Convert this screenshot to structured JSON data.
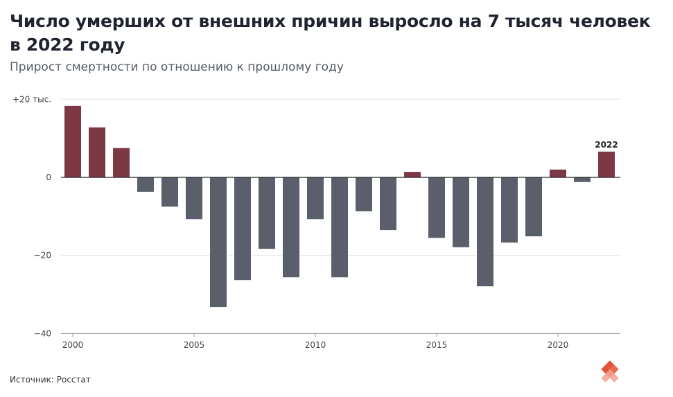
{
  "chart_data": {
    "type": "bar",
    "title": "Число умерших от внешних причин выросло на 7 тысяч человек в 2022 году",
    "subtitle": "Прирост смертности по отношению к прошлому году",
    "source": "Источник: Росстат",
    "xlabel": "",
    "ylabel": "",
    "ylim": [
      -40,
      22
    ],
    "yticks": [
      {
        "v": 20,
        "label": "+20 тыс."
      },
      {
        "v": 0,
        "label": "0"
      },
      {
        "v": -20,
        "label": "−20"
      },
      {
        "v": -40,
        "label": "−40"
      }
    ],
    "xticks": [
      2000,
      2005,
      2010,
      2015,
      2020
    ],
    "annotation": {
      "year": 2022,
      "label": "2022"
    },
    "categories": [
      2000,
      2001,
      2002,
      2003,
      2004,
      2005,
      2006,
      2007,
      2008,
      2009,
      2010,
      2011,
      2012,
      2013,
      2014,
      2015,
      2016,
      2017,
      2018,
      2019,
      2020,
      2021,
      2022
    ],
    "values": [
      18.3,
      12.8,
      7.5,
      -3.7,
      -7.5,
      -10.7,
      -33.2,
      -26.3,
      -18.3,
      -25.6,
      -10.7,
      -25.6,
      -8.7,
      -13.5,
      1.4,
      -15.5,
      -17.9,
      -27.9,
      -16.7,
      -15.1,
      2.0,
      -1.2,
      6.6
    ],
    "colors": {
      "positive": "#7d3846",
      "negative": "#5a5f6b",
      "grid": "#e3e3e3",
      "axis": "#222"
    }
  }
}
